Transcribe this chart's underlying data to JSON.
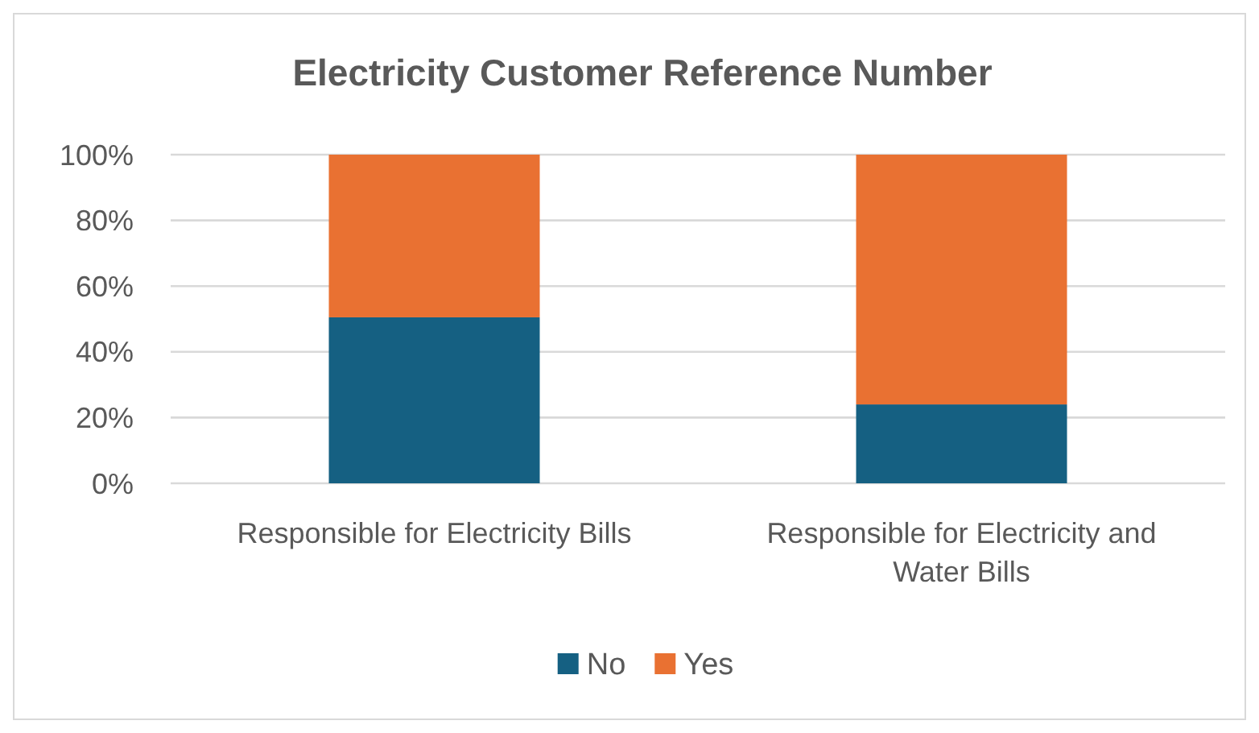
{
  "chart_data": {
    "type": "bar",
    "title": "Electricity Customer Reference Number",
    "categories": [
      "Responsible for Electricity Bills",
      "Responsible for Electricity and Water Bills"
    ],
    "series": [
      {
        "name": "No",
        "color": "#156082",
        "values": [
          50.5,
          24
        ]
      },
      {
        "name": "Yes",
        "color": "#e97132",
        "values": [
          49.5,
          76
        ]
      }
    ],
    "stacked": true,
    "ylim": [
      0,
      100
    ],
    "yticks": [
      {
        "value": 0,
        "label": "0%"
      },
      {
        "value": 20,
        "label": "20%"
      },
      {
        "value": 40,
        "label": "40%"
      },
      {
        "value": 60,
        "label": "60%"
      },
      {
        "value": 80,
        "label": "80%"
      },
      {
        "value": 100,
        "label": "100%"
      }
    ],
    "grid": "y",
    "legend": "bottom"
  }
}
